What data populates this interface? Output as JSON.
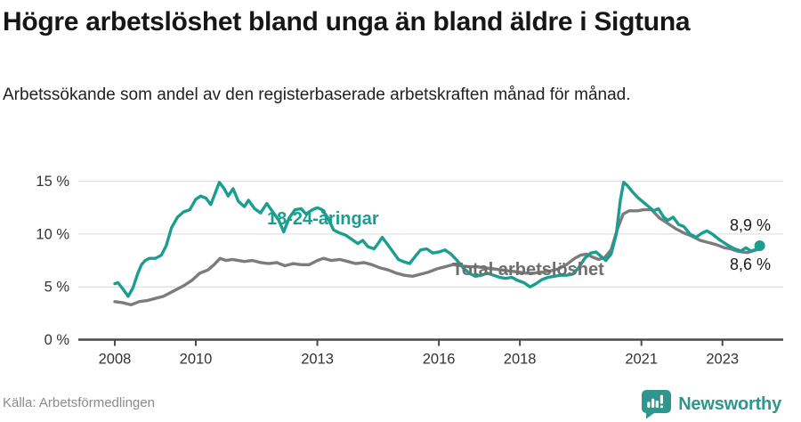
{
  "header": {
    "title": "Högre arbetslöshet bland unga än bland äldre i Sigtuna",
    "subtitle": "Arbetssökande som andel av den registerbaserade arbetskraften månad för månad."
  },
  "footer": {
    "source": "Källa: Arbetsförmedlingen",
    "brand": "Newsworthy",
    "brand_icon": "newsworthy-speech-bubble-barchart-icon"
  },
  "colors": {
    "youth_line": "#1b9e8f",
    "total_line": "#7c7c7c",
    "total_label": "#6e6e6e",
    "grid": "#e1e1e1",
    "axis": "#4a4a4a",
    "tick_text": "#333333",
    "end_label_text": "#1a1a1a",
    "brand_teal": "#2e968c",
    "background": "#ffffff"
  },
  "chart_data": {
    "type": "line",
    "title": "Högre arbetslöshet bland unga än bland äldre i Sigtuna",
    "subtitle": "Arbetssökande som andel av den registerbaserade arbetskraften månad för månad.",
    "xlabel": "",
    "ylabel": "",
    "x_domain": [
      2007.1,
      2024.5
    ],
    "ylim": [
      0,
      15.7
    ],
    "grid": "horizontal",
    "legend_position": "inline-labels",
    "x_ticks": [
      {
        "value": 2008,
        "label": "2008"
      },
      {
        "value": 2010,
        "label": "2010"
      },
      {
        "value": 2013,
        "label": "2013"
      },
      {
        "value": 2016,
        "label": "2016"
      },
      {
        "value": 2018,
        "label": "2018"
      },
      {
        "value": 2021,
        "label": "2021"
      },
      {
        "value": 2023,
        "label": "2023"
      }
    ],
    "y_ticks": [
      {
        "value": 15,
        "label": "15 %"
      },
      {
        "value": 10,
        "label": "10 %"
      },
      {
        "value": 5,
        "label": "5 %"
      },
      {
        "value": 0,
        "label": "0 %"
      }
    ],
    "series": [
      {
        "name": "Total arbetslöshet",
        "color": "#7c7c7c",
        "end_label": "8,6 %",
        "end_value": 8.6,
        "points": [
          [
            2008.0,
            3.6
          ],
          [
            2008.2,
            3.5
          ],
          [
            2008.4,
            3.3
          ],
          [
            2008.6,
            3.6
          ],
          [
            2008.8,
            3.7
          ],
          [
            2009.0,
            3.9
          ],
          [
            2009.2,
            4.1
          ],
          [
            2009.45,
            4.6
          ],
          [
            2009.7,
            5.1
          ],
          [
            2009.9,
            5.6
          ],
          [
            2010.1,
            6.3
          ],
          [
            2010.3,
            6.6
          ],
          [
            2010.45,
            7.1
          ],
          [
            2010.6,
            7.7
          ],
          [
            2010.75,
            7.5
          ],
          [
            2010.9,
            7.6
          ],
          [
            2011.05,
            7.5
          ],
          [
            2011.2,
            7.4
          ],
          [
            2011.4,
            7.5
          ],
          [
            2011.6,
            7.3
          ],
          [
            2011.8,
            7.2
          ],
          [
            2012.0,
            7.3
          ],
          [
            2012.2,
            7.0
          ],
          [
            2012.4,
            7.2
          ],
          [
            2012.6,
            7.1
          ],
          [
            2012.8,
            7.1
          ],
          [
            2013.0,
            7.5
          ],
          [
            2013.15,
            7.7
          ],
          [
            2013.35,
            7.5
          ],
          [
            2013.55,
            7.6
          ],
          [
            2013.75,
            7.4
          ],
          [
            2013.95,
            7.2
          ],
          [
            2014.15,
            7.3
          ],
          [
            2014.35,
            7.1
          ],
          [
            2014.55,
            6.8
          ],
          [
            2014.75,
            6.6
          ],
          [
            2014.95,
            6.3
          ],
          [
            2015.15,
            6.1
          ],
          [
            2015.35,
            6.0
          ],
          [
            2015.55,
            6.2
          ],
          [
            2015.75,
            6.4
          ],
          [
            2015.95,
            6.7
          ],
          [
            2016.15,
            6.9
          ],
          [
            2016.35,
            7.1
          ],
          [
            2016.55,
            7.0
          ],
          [
            2016.75,
            6.9
          ],
          [
            2016.95,
            6.9
          ],
          [
            2017.15,
            6.8
          ],
          [
            2017.35,
            6.7
          ],
          [
            2017.55,
            6.6
          ],
          [
            2017.75,
            6.5
          ],
          [
            2017.95,
            6.4
          ],
          [
            2018.15,
            6.3
          ],
          [
            2018.35,
            6.3
          ],
          [
            2018.55,
            6.4
          ],
          [
            2018.75,
            6.5
          ],
          [
            2018.95,
            6.7
          ],
          [
            2019.15,
            7.1
          ],
          [
            2019.35,
            7.7
          ],
          [
            2019.5,
            8.0
          ],
          [
            2019.65,
            8.1
          ],
          [
            2019.8,
            7.8
          ],
          [
            2019.95,
            7.6
          ],
          [
            2020.1,
            7.8
          ],
          [
            2020.25,
            8.5
          ],
          [
            2020.4,
            10.4
          ],
          [
            2020.55,
            11.9
          ],
          [
            2020.7,
            12.2
          ],
          [
            2020.9,
            12.2
          ],
          [
            2021.05,
            12.3
          ],
          [
            2021.25,
            12.3
          ],
          [
            2021.45,
            11.5
          ],
          [
            2021.65,
            11.0
          ],
          [
            2021.85,
            10.5
          ],
          [
            2022.05,
            10.1
          ],
          [
            2022.25,
            9.8
          ],
          [
            2022.45,
            9.4
          ],
          [
            2022.65,
            9.2
          ],
          [
            2022.85,
            9.0
          ],
          [
            2023.05,
            8.7
          ],
          [
            2023.2,
            8.6
          ],
          [
            2023.35,
            8.4
          ],
          [
            2023.5,
            8.3
          ],
          [
            2023.62,
            8.25
          ],
          [
            2023.75,
            8.4
          ],
          [
            2023.92,
            8.6
          ]
        ]
      },
      {
        "name": "18-24-åringar",
        "color": "#1b9e8f",
        "end_label": "8,9 %",
        "end_value": 8.9,
        "end_dot": true,
        "points": [
          [
            2008.0,
            5.3
          ],
          [
            2008.08,
            5.4
          ],
          [
            2008.2,
            4.8
          ],
          [
            2008.33,
            4.1
          ],
          [
            2008.45,
            4.9
          ],
          [
            2008.57,
            6.3
          ],
          [
            2008.66,
            7.1
          ],
          [
            2008.75,
            7.5
          ],
          [
            2008.85,
            7.7
          ],
          [
            2009.0,
            7.7
          ],
          [
            2009.15,
            8.0
          ],
          [
            2009.27,
            8.9
          ],
          [
            2009.4,
            10.6
          ],
          [
            2009.55,
            11.6
          ],
          [
            2009.7,
            12.1
          ],
          [
            2009.85,
            12.3
          ],
          [
            2010.0,
            13.3
          ],
          [
            2010.12,
            13.6
          ],
          [
            2010.25,
            13.4
          ],
          [
            2010.37,
            12.8
          ],
          [
            2010.5,
            14.1
          ],
          [
            2010.58,
            14.9
          ],
          [
            2010.7,
            14.3
          ],
          [
            2010.8,
            13.6
          ],
          [
            2010.92,
            14.3
          ],
          [
            2011.05,
            13.1
          ],
          [
            2011.2,
            12.6
          ],
          [
            2011.3,
            13.2
          ],
          [
            2011.45,
            12.4
          ],
          [
            2011.6,
            12.0
          ],
          [
            2011.75,
            12.9
          ],
          [
            2011.9,
            12.1
          ],
          [
            2012.05,
            11.3
          ],
          [
            2012.17,
            10.2
          ],
          [
            2012.3,
            11.5
          ],
          [
            2012.45,
            12.3
          ],
          [
            2012.6,
            12.4
          ],
          [
            2012.72,
            11.9
          ],
          [
            2012.88,
            12.3
          ],
          [
            2013.0,
            12.5
          ],
          [
            2013.12,
            12.3
          ],
          [
            2013.25,
            11.6
          ],
          [
            2013.4,
            10.4
          ],
          [
            2013.55,
            10.1
          ],
          [
            2013.7,
            9.9
          ],
          [
            2013.85,
            9.5
          ],
          [
            2014.0,
            9.1
          ],
          [
            2014.12,
            9.4
          ],
          [
            2014.25,
            8.8
          ],
          [
            2014.4,
            8.6
          ],
          [
            2014.5,
            9.1
          ],
          [
            2014.6,
            9.7
          ],
          [
            2014.72,
            9.1
          ],
          [
            2014.85,
            8.4
          ],
          [
            2015.0,
            7.6
          ],
          [
            2015.12,
            7.4
          ],
          [
            2015.28,
            7.2
          ],
          [
            2015.42,
            7.9
          ],
          [
            2015.55,
            8.5
          ],
          [
            2015.7,
            8.6
          ],
          [
            2015.85,
            8.2
          ],
          [
            2016.0,
            8.3
          ],
          [
            2016.15,
            8.5
          ],
          [
            2016.3,
            8.1
          ],
          [
            2016.45,
            7.5
          ],
          [
            2016.6,
            6.8
          ],
          [
            2016.75,
            6.3
          ],
          [
            2016.9,
            6.0
          ],
          [
            2017.05,
            6.1
          ],
          [
            2017.2,
            6.3
          ],
          [
            2017.35,
            6.1
          ],
          [
            2017.5,
            5.9
          ],
          [
            2017.65,
            5.8
          ],
          [
            2017.8,
            5.9
          ],
          [
            2017.95,
            5.6
          ],
          [
            2018.1,
            5.4
          ],
          [
            2018.25,
            5.0
          ],
          [
            2018.4,
            5.3
          ],
          [
            2018.55,
            5.7
          ],
          [
            2018.7,
            5.9
          ],
          [
            2018.85,
            6.0
          ],
          [
            2019.0,
            6.1
          ],
          [
            2019.15,
            6.1
          ],
          [
            2019.3,
            6.2
          ],
          [
            2019.45,
            6.8
          ],
          [
            2019.6,
            7.7
          ],
          [
            2019.75,
            8.2
          ],
          [
            2019.88,
            8.3
          ],
          [
            2020.0,
            7.9
          ],
          [
            2020.12,
            7.5
          ],
          [
            2020.25,
            8.1
          ],
          [
            2020.38,
            10.0
          ],
          [
            2020.48,
            13.2
          ],
          [
            2020.56,
            14.9
          ],
          [
            2020.65,
            14.6
          ],
          [
            2020.78,
            14.0
          ],
          [
            2020.9,
            13.5
          ],
          [
            2021.02,
            13.1
          ],
          [
            2021.15,
            12.7
          ],
          [
            2021.3,
            12.2
          ],
          [
            2021.42,
            12.4
          ],
          [
            2021.55,
            11.6
          ],
          [
            2021.65,
            11.3
          ],
          [
            2021.78,
            11.6
          ],
          [
            2021.92,
            10.9
          ],
          [
            2022.05,
            10.7
          ],
          [
            2022.2,
            10.0
          ],
          [
            2022.35,
            9.7
          ],
          [
            2022.5,
            10.1
          ],
          [
            2022.62,
            10.3
          ],
          [
            2022.75,
            10.0
          ],
          [
            2022.95,
            9.4
          ],
          [
            2023.15,
            8.9
          ],
          [
            2023.3,
            8.6
          ],
          [
            2023.45,
            8.4
          ],
          [
            2023.58,
            8.7
          ],
          [
            2023.7,
            8.4
          ],
          [
            2023.8,
            8.5
          ],
          [
            2023.92,
            8.9
          ]
        ]
      }
    ]
  }
}
